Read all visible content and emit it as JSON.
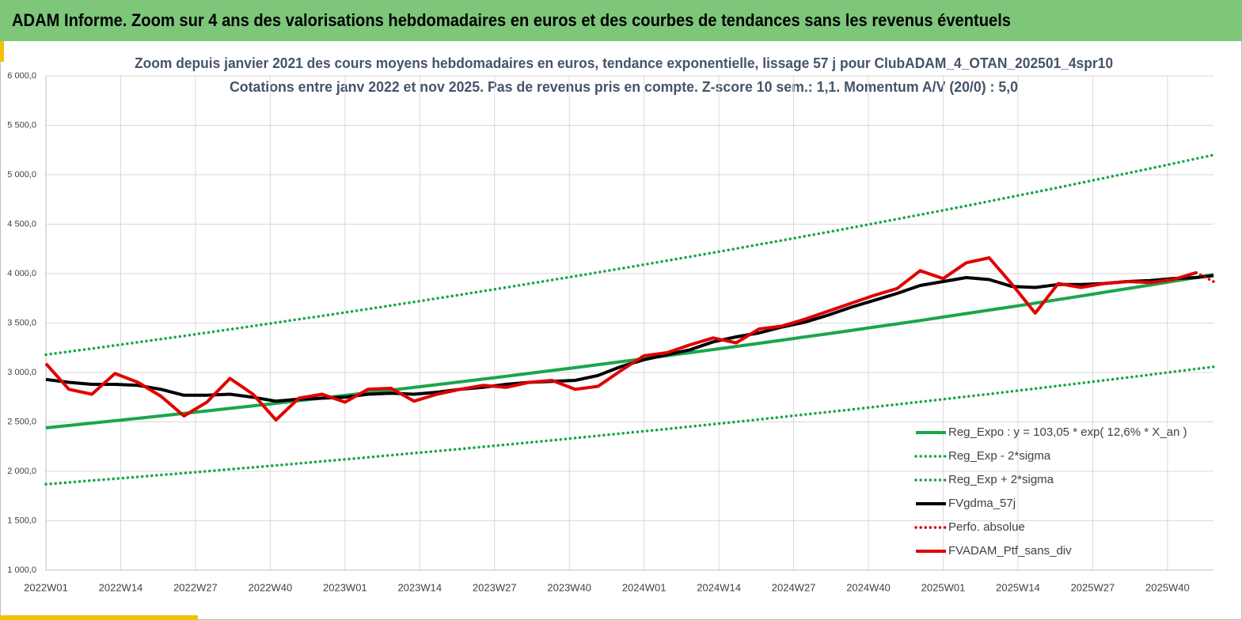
{
  "header": {
    "title": "ADAM Informe. Zoom sur 4 ans des valorisations hebdomadaires en euros et des courbes de tendances sans les revenus éventuels"
  },
  "chart_data": {
    "type": "line",
    "title": "Zoom depuis janvier 2021 des cours moyens hebdomadaires  en euros, tendance exponentielle, lissage 57 j pour ClubADAM_4_OTAN_202501_4spr10",
    "subtitle": "Cotations entre janv 2022 et nov 2025. Pas de revenus pris en compte. Z-score 10 sem.: 1,1. Momentum A/V (20/0) : 5,0",
    "x": [
      0,
      4,
      8,
      12,
      16,
      20,
      24,
      28,
      32,
      36,
      40,
      44,
      48,
      52,
      56,
      60,
      64,
      68,
      72,
      76,
      80,
      84,
      88,
      92,
      96,
      100,
      104,
      108,
      112,
      116,
      120,
      124,
      128,
      132,
      136,
      140,
      144,
      148,
      152,
      156,
      160,
      164,
      168,
      172,
      176,
      180,
      184,
      188,
      192,
      196,
      200,
      203
    ],
    "xlim": [
      0,
      203
    ],
    "xticks": [
      {
        "value": 0,
        "label": "2022W01"
      },
      {
        "value": 13,
        "label": "2022W14"
      },
      {
        "value": 26,
        "label": "2022W27"
      },
      {
        "value": 39,
        "label": "2022W40"
      },
      {
        "value": 52,
        "label": "2023W01"
      },
      {
        "value": 65,
        "label": "2023W14"
      },
      {
        "value": 78,
        "label": "2023W27"
      },
      {
        "value": 91,
        "label": "2023W40"
      },
      {
        "value": 104,
        "label": "2024W01"
      },
      {
        "value": 117,
        "label": "2024W14"
      },
      {
        "value": 130,
        "label": "2024W27"
      },
      {
        "value": 143,
        "label": "2024W40"
      },
      {
        "value": 156,
        "label": "2025W01"
      },
      {
        "value": 169,
        "label": "2025W14"
      },
      {
        "value": 182,
        "label": "2025W27"
      },
      {
        "value": 195,
        "label": "2025W40"
      }
    ],
    "ylim": [
      1000,
      6000
    ],
    "yticks": [
      {
        "value": 1000,
        "label": "1 000,0"
      },
      {
        "value": 1500,
        "label": "1 500,0"
      },
      {
        "value": 2000,
        "label": "2 000,0"
      },
      {
        "value": 2500,
        "label": "2 500,0"
      },
      {
        "value": 3000,
        "label": "3 000,0"
      },
      {
        "value": 3500,
        "label": "3 500,0"
      },
      {
        "value": 4000,
        "label": "4 000,0"
      },
      {
        "value": 4500,
        "label": "4 500,0"
      },
      {
        "value": 5000,
        "label": "5 000,0"
      },
      {
        "value": 5500,
        "label": "5 500,0"
      },
      {
        "value": 6000,
        "label": "6 000,0"
      }
    ],
    "grid": true,
    "legend": "lower right",
    "series": [
      {
        "name": "Reg_Expo : y = 103,05 * exp( 12,6% *  X_an )",
        "color": "#1aa64a",
        "style": "solid",
        "values": [
          2440,
          2464,
          2488,
          2512,
          2536,
          2561,
          2586,
          2611,
          2637,
          2662,
          2688,
          2715,
          2741,
          2768,
          2795,
          2822,
          2849,
          2877,
          2905,
          2933,
          2962,
          2991,
          3020,
          3049,
          3079,
          3109,
          3139,
          3170,
          3201,
          3232,
          3263,
          3295,
          3327,
          3360,
          3392,
          3425,
          3459,
          3492,
          3526,
          3561,
          3596,
          3631,
          3666,
          3702,
          3738,
          3774,
          3811,
          3848,
          3885,
          3923,
          3961,
          3990
        ]
      },
      {
        "name": "Reg_Exp - 2*sigma",
        "color": "#1aa64a",
        "style": "dotted",
        "values": [
          1870,
          1888,
          1907,
          1925,
          1944,
          1963,
          1982,
          2001,
          2021,
          2040,
          2060,
          2080,
          2101,
          2121,
          2142,
          2163,
          2184,
          2205,
          2226,
          2248,
          2270,
          2292,
          2314,
          2337,
          2360,
          2383,
          2406,
          2429,
          2453,
          2477,
          2501,
          2525,
          2550,
          2575,
          2600,
          2625,
          2651,
          2677,
          2703,
          2729,
          2756,
          2782,
          2810,
          2837,
          2865,
          2892,
          2921,
          2949,
          2978,
          3007,
          3036,
          3058
        ]
      },
      {
        "name": "Reg_Exp + 2*sigma",
        "color": "#1aa64a",
        "style": "dotted",
        "values": [
          3180,
          3211,
          3242,
          3274,
          3306,
          3338,
          3370,
          3403,
          3436,
          3470,
          3504,
          3538,
          3572,
          3607,
          3642,
          3678,
          3713,
          3750,
          3786,
          3823,
          3860,
          3898,
          3936,
          3974,
          4013,
          4052,
          4091,
          4131,
          4171,
          4212,
          4253,
          4295,
          4336,
          4379,
          4421,
          4464,
          4508,
          4552,
          4596,
          4641,
          4686,
          4732,
          4778,
          4824,
          4871,
          4919,
          4967,
          5015,
          5064,
          5113,
          5163,
          5201
        ]
      },
      {
        "name": "FVgdma_57j",
        "color": "#000000",
        "style": "solid",
        "values": [
          2930,
          2900,
          2880,
          2880,
          2870,
          2830,
          2770,
          2770,
          2780,
          2750,
          2710,
          2730,
          2740,
          2750,
          2780,
          2790,
          2780,
          2800,
          2830,
          2850,
          2880,
          2900,
          2910,
          2920,
          2970,
          3060,
          3130,
          3180,
          3230,
          3310,
          3360,
          3400,
          3460,
          3510,
          3580,
          3660,
          3730,
          3800,
          3880,
          3920,
          3960,
          3940,
          3870,
          3860,
          3890,
          3890,
          3900,
          3920,
          3930,
          3950,
          3960,
          3980
        ]
      },
      {
        "name": "Perfo. absolue",
        "color": "#e00000",
        "style": "dotted",
        "values": [
          null,
          null,
          null,
          null,
          null,
          null,
          null,
          null,
          null,
          null,
          null,
          null,
          null,
          null,
          null,
          null,
          null,
          null,
          null,
          null,
          null,
          null,
          null,
          null,
          null,
          null,
          null,
          null,
          null,
          null,
          null,
          null,
          null,
          null,
          null,
          null,
          null,
          null,
          null,
          null,
          null,
          null,
          null,
          null,
          null,
          null,
          null,
          null,
          null,
          null,
          4010,
          3920
        ]
      },
      {
        "name": "FVADAM_Ptf_sans_div",
        "color": "#e00000",
        "style": "solid",
        "values": [
          3090,
          2830,
          2780,
          2990,
          2900,
          2760,
          2560,
          2700,
          2940,
          2780,
          2520,
          2740,
          2780,
          2700,
          2830,
          2840,
          2710,
          2780,
          2830,
          2870,
          2850,
          2900,
          2920,
          2830,
          2860,
          3020,
          3170,
          3200,
          3280,
          3350,
          3300,
          3440,
          3470,
          3540,
          3620,
          3700,
          3780,
          3850,
          4030,
          3950,
          4110,
          4160,
          3890,
          3600,
          3900,
          3860,
          3900,
          3920,
          3910,
          3940,
          4010,
          null
        ]
      }
    ]
  }
}
